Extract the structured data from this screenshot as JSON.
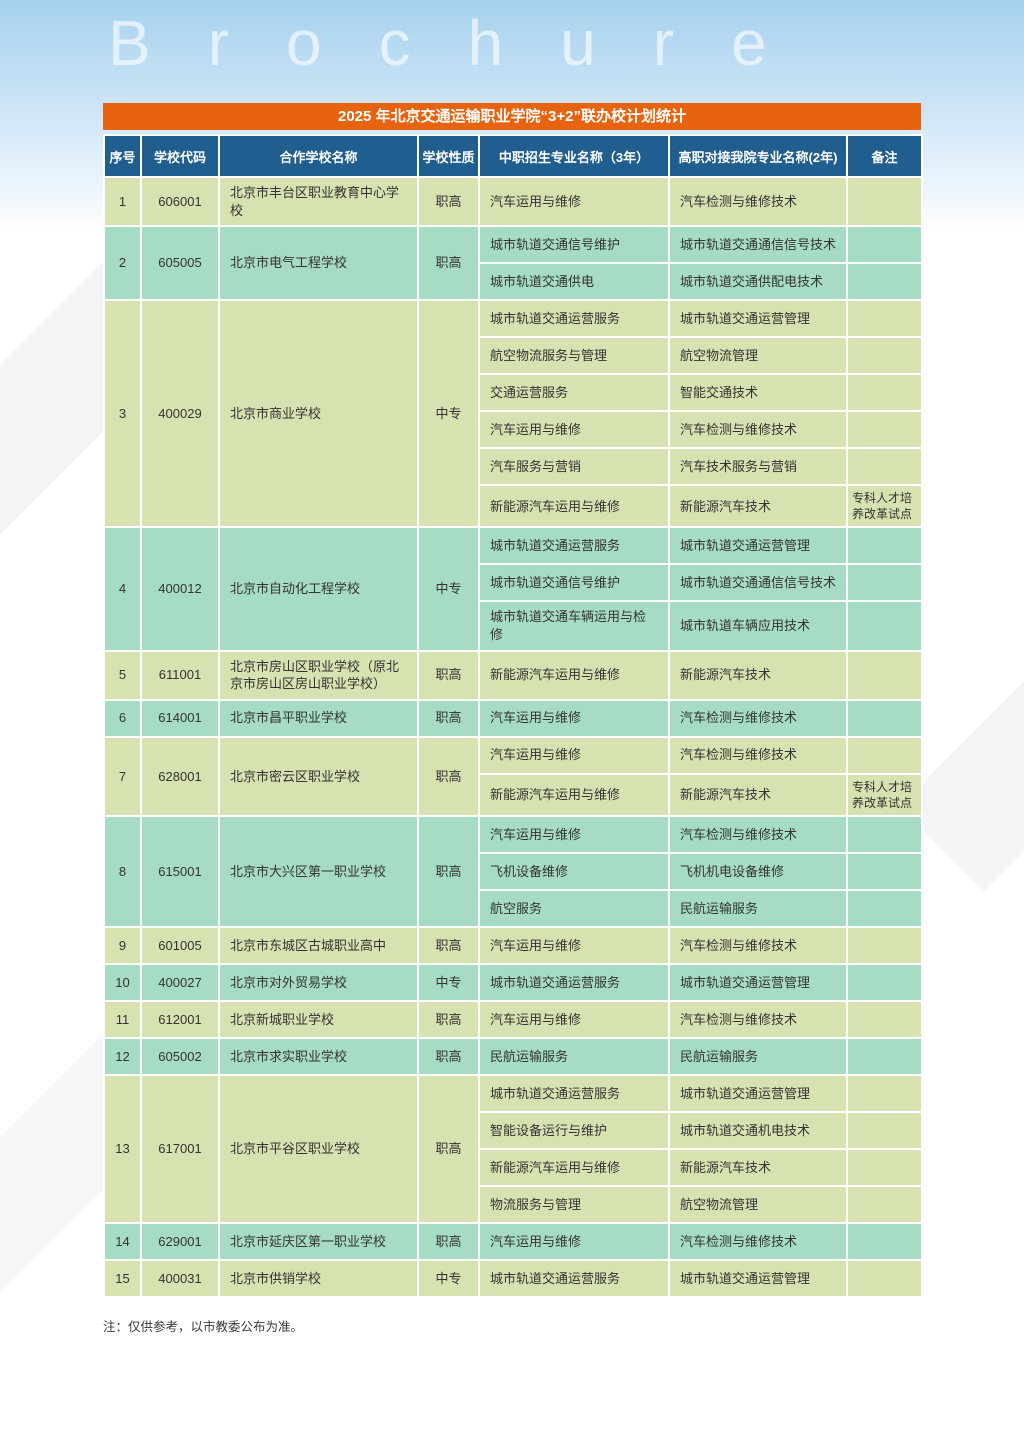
{
  "page": {
    "watermark": "Brochure",
    "footer_note": "注：仅供参考，以市教委公布为准。"
  },
  "colors": {
    "accent_orange": "#e8630f",
    "header_blue": "#1f5e8f",
    "row_light_green": "#d6e2af",
    "row_teal": "#a5dcc3"
  },
  "table": {
    "title": "2025 年北京交通运输职业学院“3+2”联办校计划统计",
    "columns": [
      "序号",
      "学校代码",
      "合作学校名称",
      "学校性质",
      "中职招生专业名称（3年）",
      "高职对接我院专业名称(2年)",
      "备注"
    ],
    "rows": [
      {
        "no": "1",
        "code": "606001",
        "school": "北京市丰台区职业教育中心学校",
        "type": "职高",
        "majors": [
          {
            "zz": "汽车运用与维修",
            "gz": "汽车检测与维修技术",
            "note": ""
          }
        ]
      },
      {
        "no": "2",
        "code": "605005",
        "school": "北京市电气工程学校",
        "type": "职高",
        "majors": [
          {
            "zz": "城市轨道交通信号维护",
            "gz": "城市轨道交通通信信号技术",
            "note": ""
          },
          {
            "zz": "城市轨道交通供电",
            "gz": "城市轨道交通供配电技术",
            "note": ""
          }
        ]
      },
      {
        "no": "3",
        "code": "400029",
        "school": "北京市商业学校",
        "type": "中专",
        "majors": [
          {
            "zz": "城市轨道交通运营服务",
            "gz": "城市轨道交通运营管理",
            "note": ""
          },
          {
            "zz": "航空物流服务与管理",
            "gz": "航空物流管理",
            "note": ""
          },
          {
            "zz": "交通运营服务",
            "gz": "智能交通技术",
            "note": ""
          },
          {
            "zz": "汽车运用与维修",
            "gz": "汽车检测与维修技术",
            "note": ""
          },
          {
            "zz": "汽车服务与营销",
            "gz": "汽车技术服务与营销",
            "note": ""
          },
          {
            "zz": "新能源汽车运用与维修",
            "gz": "新能源汽车技术",
            "note": "专科人才培养改革试点"
          }
        ]
      },
      {
        "no": "4",
        "code": "400012",
        "school": "北京市自动化工程学校",
        "type": "中专",
        "majors": [
          {
            "zz": "城市轨道交通运营服务",
            "gz": "城市轨道交通运营管理",
            "note": ""
          },
          {
            "zz": "城市轨道交通信号维护",
            "gz": "城市轨道交通通信信号技术",
            "note": ""
          },
          {
            "zz": "城市轨道交通车辆运用与检修",
            "gz": "城市轨道车辆应用技术",
            "note": ""
          }
        ]
      },
      {
        "no": "5",
        "code": "611001",
        "school": "北京市房山区职业学校（原北京市房山区房山职业学校）",
        "type": "职高",
        "majors": [
          {
            "zz": "新能源汽车运用与维修",
            "gz": "新能源汽车技术",
            "note": ""
          }
        ]
      },
      {
        "no": "6",
        "code": "614001",
        "school": "北京市昌平职业学校",
        "type": "职高",
        "majors": [
          {
            "zz": "汽车运用与维修",
            "gz": "汽车检测与维修技术",
            "note": ""
          }
        ]
      },
      {
        "no": "7",
        "code": "628001",
        "school": "北京市密云区职业学校",
        "type": "职高",
        "majors": [
          {
            "zz": "汽车运用与维修",
            "gz": "汽车检测与维修技术",
            "note": ""
          },
          {
            "zz": "新能源汽车运用与维修",
            "gz": "新能源汽车技术",
            "note": "专科人才培养改革试点"
          }
        ]
      },
      {
        "no": "8",
        "code": "615001",
        "school": "北京市大兴区第一职业学校",
        "type": "职高",
        "majors": [
          {
            "zz": "汽车运用与维修",
            "gz": "汽车检测与维修技术",
            "note": ""
          },
          {
            "zz": "飞机设备维修",
            "gz": "飞机机电设备维修",
            "note": ""
          },
          {
            "zz": "航空服务",
            "gz": "民航运输服务",
            "note": ""
          }
        ]
      },
      {
        "no": "9",
        "code": "601005",
        "school": "北京市东城区古城职业高中",
        "type": "职高",
        "majors": [
          {
            "zz": "汽车运用与维修",
            "gz": "汽车检测与维修技术",
            "note": ""
          }
        ]
      },
      {
        "no": "10",
        "code": "400027",
        "school": "北京市对外贸易学校",
        "type": "中专",
        "majors": [
          {
            "zz": "城市轨道交通运营服务",
            "gz": "城市轨道交通运营管理",
            "note": ""
          }
        ]
      },
      {
        "no": "11",
        "code": "612001",
        "school": "北京新城职业学校",
        "type": "职高",
        "majors": [
          {
            "zz": "汽车运用与维修",
            "gz": "汽车检测与维修技术",
            "note": ""
          }
        ]
      },
      {
        "no": "12",
        "code": "605002",
        "school": "北京市求实职业学校",
        "type": "职高",
        "majors": [
          {
            "zz": "民航运输服务",
            "gz": "民航运输服务",
            "note": ""
          }
        ]
      },
      {
        "no": "13",
        "code": "617001",
        "school": "北京市平谷区职业学校",
        "type": "职高",
        "majors": [
          {
            "zz": "城市轨道交通运营服务",
            "gz": "城市轨道交通运营管理",
            "note": ""
          },
          {
            "zz": "智能设备运行与维护",
            "gz": "城市轨道交通机电技术",
            "note": ""
          },
          {
            "zz": "新能源汽车运用与维修",
            "gz": "新能源汽车技术",
            "note": ""
          },
          {
            "zz": "物流服务与管理",
            "gz": "航空物流管理",
            "note": ""
          }
        ]
      },
      {
        "no": "14",
        "code": "629001",
        "school": "北京市延庆区第一职业学校",
        "type": "职高",
        "majors": [
          {
            "zz": "汽车运用与维修",
            "gz": "汽车检测与维修技术",
            "note": ""
          }
        ]
      },
      {
        "no": "15",
        "code": "400031",
        "school": "北京市供销学校",
        "type": "中专",
        "majors": [
          {
            "zz": "城市轨道交通运营服务",
            "gz": "城市轨道交通运营管理",
            "note": ""
          }
        ]
      }
    ]
  }
}
